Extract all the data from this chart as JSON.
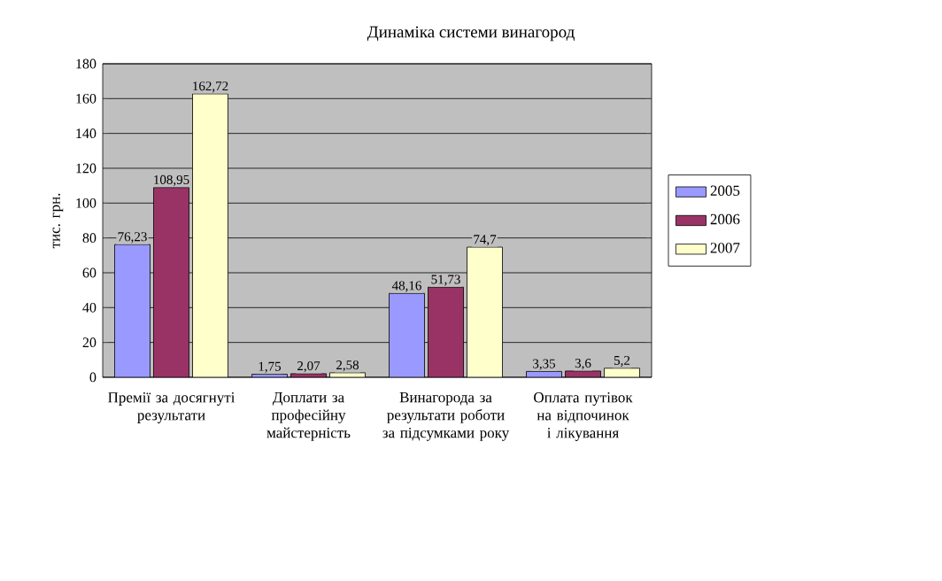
{
  "chart_data": {
    "type": "bar",
    "title": "Динаміка системи винагород",
    "ylabel": "тис. грн.",
    "categories": [
      "Премії за досягнуті результати",
      "Доплати за професійну майстерність",
      "Винагорода за результати роботи за підсумками року",
      "Оплата путівок на відпочинок і лікування"
    ],
    "series": [
      {
        "name": "2005",
        "color": "#9999ff",
        "values": [
          76.23,
          1.75,
          48.16,
          3.35
        ],
        "value_labels": [
          "76,23",
          "1,75",
          "48,16",
          "3,35"
        ]
      },
      {
        "name": "2006",
        "color": "#993366",
        "values": [
          108.95,
          2.07,
          51.73,
          3.6
        ],
        "value_labels": [
          "108,95",
          "2,07",
          "51,73",
          "3,6"
        ]
      },
      {
        "name": "2007",
        "color": "#ffffcc",
        "values": [
          162.72,
          2.58,
          74.7,
          5.2
        ],
        "value_labels": [
          "162,72",
          "2,58",
          "74,7",
          "5,2"
        ]
      }
    ],
    "ylim": [
      0,
      180
    ],
    "yticks": [
      0,
      20,
      40,
      60,
      80,
      100,
      120,
      140,
      160,
      180
    ],
    "grid": "y",
    "legend": "right"
  }
}
